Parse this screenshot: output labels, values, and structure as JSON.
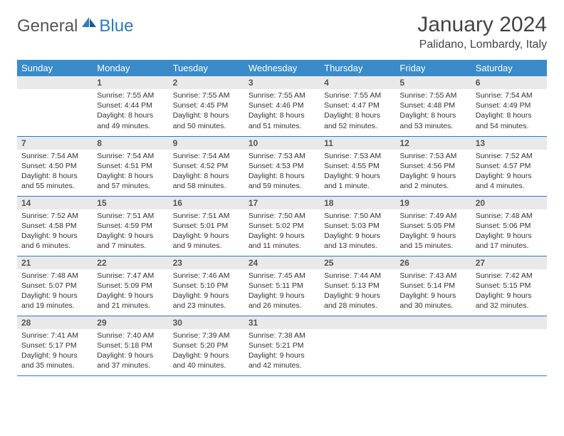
{
  "logo": {
    "text1": "General",
    "text2": "Blue"
  },
  "title": "January 2024",
  "location": "Palidano, Lombardy, Italy",
  "weekdays": [
    "Sunday",
    "Monday",
    "Tuesday",
    "Wednesday",
    "Thursday",
    "Friday",
    "Saturday"
  ],
  "colors": {
    "header_bg": "#3a8bc9",
    "divider": "#2b7bbf",
    "daynum_bg": "#e9e9e9"
  },
  "weeks": [
    [
      {
        "n": "",
        "sr": "",
        "ss": "",
        "d1": "",
        "d2": ""
      },
      {
        "n": "1",
        "sr": "Sunrise: 7:55 AM",
        "ss": "Sunset: 4:44 PM",
        "d1": "Daylight: 8 hours",
        "d2": "and 49 minutes."
      },
      {
        "n": "2",
        "sr": "Sunrise: 7:55 AM",
        "ss": "Sunset: 4:45 PM",
        "d1": "Daylight: 8 hours",
        "d2": "and 50 minutes."
      },
      {
        "n": "3",
        "sr": "Sunrise: 7:55 AM",
        "ss": "Sunset: 4:46 PM",
        "d1": "Daylight: 8 hours",
        "d2": "and 51 minutes."
      },
      {
        "n": "4",
        "sr": "Sunrise: 7:55 AM",
        "ss": "Sunset: 4:47 PM",
        "d1": "Daylight: 8 hours",
        "d2": "and 52 minutes."
      },
      {
        "n": "5",
        "sr": "Sunrise: 7:55 AM",
        "ss": "Sunset: 4:48 PM",
        "d1": "Daylight: 8 hours",
        "d2": "and 53 minutes."
      },
      {
        "n": "6",
        "sr": "Sunrise: 7:54 AM",
        "ss": "Sunset: 4:49 PM",
        "d1": "Daylight: 8 hours",
        "d2": "and 54 minutes."
      }
    ],
    [
      {
        "n": "7",
        "sr": "Sunrise: 7:54 AM",
        "ss": "Sunset: 4:50 PM",
        "d1": "Daylight: 8 hours",
        "d2": "and 55 minutes."
      },
      {
        "n": "8",
        "sr": "Sunrise: 7:54 AM",
        "ss": "Sunset: 4:51 PM",
        "d1": "Daylight: 8 hours",
        "d2": "and 57 minutes."
      },
      {
        "n": "9",
        "sr": "Sunrise: 7:54 AM",
        "ss": "Sunset: 4:52 PM",
        "d1": "Daylight: 8 hours",
        "d2": "and 58 minutes."
      },
      {
        "n": "10",
        "sr": "Sunrise: 7:53 AM",
        "ss": "Sunset: 4:53 PM",
        "d1": "Daylight: 8 hours",
        "d2": "and 59 minutes."
      },
      {
        "n": "11",
        "sr": "Sunrise: 7:53 AM",
        "ss": "Sunset: 4:55 PM",
        "d1": "Daylight: 9 hours",
        "d2": "and 1 minute."
      },
      {
        "n": "12",
        "sr": "Sunrise: 7:53 AM",
        "ss": "Sunset: 4:56 PM",
        "d1": "Daylight: 9 hours",
        "d2": "and 2 minutes."
      },
      {
        "n": "13",
        "sr": "Sunrise: 7:52 AM",
        "ss": "Sunset: 4:57 PM",
        "d1": "Daylight: 9 hours",
        "d2": "and 4 minutes."
      }
    ],
    [
      {
        "n": "14",
        "sr": "Sunrise: 7:52 AM",
        "ss": "Sunset: 4:58 PM",
        "d1": "Daylight: 9 hours",
        "d2": "and 6 minutes."
      },
      {
        "n": "15",
        "sr": "Sunrise: 7:51 AM",
        "ss": "Sunset: 4:59 PM",
        "d1": "Daylight: 9 hours",
        "d2": "and 7 minutes."
      },
      {
        "n": "16",
        "sr": "Sunrise: 7:51 AM",
        "ss": "Sunset: 5:01 PM",
        "d1": "Daylight: 9 hours",
        "d2": "and 9 minutes."
      },
      {
        "n": "17",
        "sr": "Sunrise: 7:50 AM",
        "ss": "Sunset: 5:02 PM",
        "d1": "Daylight: 9 hours",
        "d2": "and 11 minutes."
      },
      {
        "n": "18",
        "sr": "Sunrise: 7:50 AM",
        "ss": "Sunset: 5:03 PM",
        "d1": "Daylight: 9 hours",
        "d2": "and 13 minutes."
      },
      {
        "n": "19",
        "sr": "Sunrise: 7:49 AM",
        "ss": "Sunset: 5:05 PM",
        "d1": "Daylight: 9 hours",
        "d2": "and 15 minutes."
      },
      {
        "n": "20",
        "sr": "Sunrise: 7:48 AM",
        "ss": "Sunset: 5:06 PM",
        "d1": "Daylight: 9 hours",
        "d2": "and 17 minutes."
      }
    ],
    [
      {
        "n": "21",
        "sr": "Sunrise: 7:48 AM",
        "ss": "Sunset: 5:07 PM",
        "d1": "Daylight: 9 hours",
        "d2": "and 19 minutes."
      },
      {
        "n": "22",
        "sr": "Sunrise: 7:47 AM",
        "ss": "Sunset: 5:09 PM",
        "d1": "Daylight: 9 hours",
        "d2": "and 21 minutes."
      },
      {
        "n": "23",
        "sr": "Sunrise: 7:46 AM",
        "ss": "Sunset: 5:10 PM",
        "d1": "Daylight: 9 hours",
        "d2": "and 23 minutes."
      },
      {
        "n": "24",
        "sr": "Sunrise: 7:45 AM",
        "ss": "Sunset: 5:11 PM",
        "d1": "Daylight: 9 hours",
        "d2": "and 26 minutes."
      },
      {
        "n": "25",
        "sr": "Sunrise: 7:44 AM",
        "ss": "Sunset: 5:13 PM",
        "d1": "Daylight: 9 hours",
        "d2": "and 28 minutes."
      },
      {
        "n": "26",
        "sr": "Sunrise: 7:43 AM",
        "ss": "Sunset: 5:14 PM",
        "d1": "Daylight: 9 hours",
        "d2": "and 30 minutes."
      },
      {
        "n": "27",
        "sr": "Sunrise: 7:42 AM",
        "ss": "Sunset: 5:15 PM",
        "d1": "Daylight: 9 hours",
        "d2": "and 32 minutes."
      }
    ],
    [
      {
        "n": "28",
        "sr": "Sunrise: 7:41 AM",
        "ss": "Sunset: 5:17 PM",
        "d1": "Daylight: 9 hours",
        "d2": "and 35 minutes."
      },
      {
        "n": "29",
        "sr": "Sunrise: 7:40 AM",
        "ss": "Sunset: 5:18 PM",
        "d1": "Daylight: 9 hours",
        "d2": "and 37 minutes."
      },
      {
        "n": "30",
        "sr": "Sunrise: 7:39 AM",
        "ss": "Sunset: 5:20 PM",
        "d1": "Daylight: 9 hours",
        "d2": "and 40 minutes."
      },
      {
        "n": "31",
        "sr": "Sunrise: 7:38 AM",
        "ss": "Sunset: 5:21 PM",
        "d1": "Daylight: 9 hours",
        "d2": "and 42 minutes."
      },
      {
        "n": "",
        "sr": "",
        "ss": "",
        "d1": "",
        "d2": ""
      },
      {
        "n": "",
        "sr": "",
        "ss": "",
        "d1": "",
        "d2": ""
      },
      {
        "n": "",
        "sr": "",
        "ss": "",
        "d1": "",
        "d2": ""
      }
    ]
  ]
}
